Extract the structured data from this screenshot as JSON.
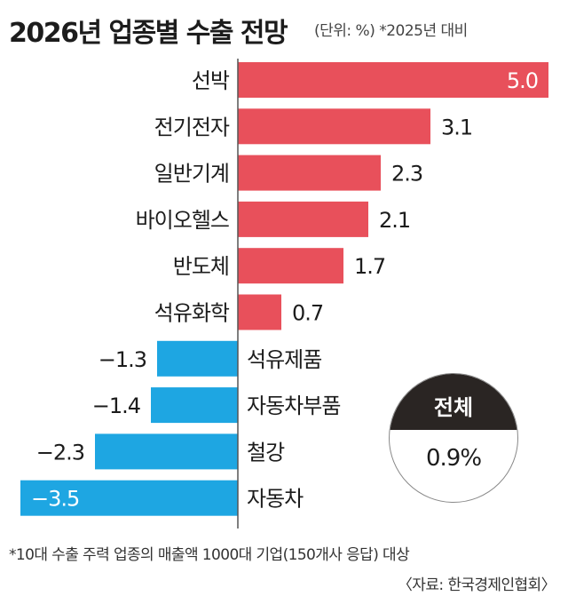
{
  "header": {
    "title": "2026년 업종별 수출 전망",
    "subtitle": "(단위: %) *2025년 대비"
  },
  "chart_data": {
    "type": "bar",
    "orientation": "horizontal",
    "categories": [
      "선박",
      "전기전자",
      "일반기계",
      "바이오헬스",
      "반도체",
      "석유화학",
      "석유제품",
      "자동차부품",
      "철강",
      "자동차"
    ],
    "values": [
      5.0,
      3.1,
      2.3,
      2.1,
      1.7,
      0.7,
      -1.3,
      -1.4,
      -2.3,
      -3.5
    ],
    "value_labels": [
      "5.0",
      "3.1",
      "2.3",
      "2.1",
      "1.7",
      "0.7",
      "−1.3",
      "−1.4",
      "−2.3",
      "−3.5"
    ],
    "title": "2026년 업종별 수출 전망",
    "xlabel": "",
    "ylabel": "",
    "xlim": [
      -3.5,
      5.0
    ],
    "grid": false,
    "colors": {
      "positive": "#e8505b",
      "negative": "#1ea6e2",
      "axis": "#555555"
    }
  },
  "total": {
    "label": "전체",
    "value": "0.9%"
  },
  "footer": {
    "note": "*10대 수출 주력 업종의 매출액 1000대 기업(150개사 응답) 대상",
    "source": "〈자료: 한국경제인협회〉"
  }
}
